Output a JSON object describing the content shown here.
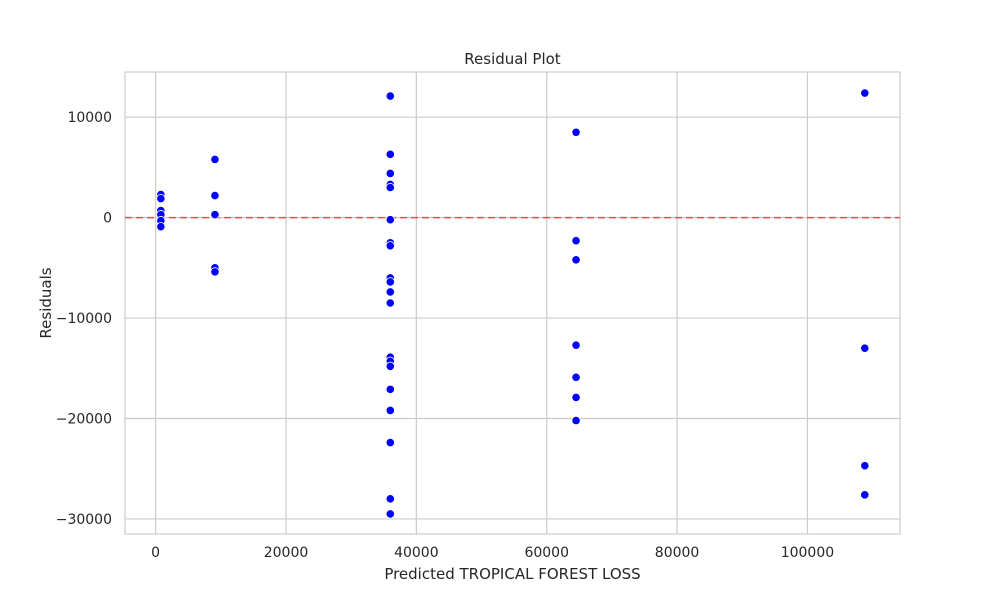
{
  "chart_data": {
    "type": "scatter",
    "title": "Residual Plot",
    "xlabel": "Predicted TROPICAL FOREST LOSS",
    "ylabel": "Residuals",
    "xlim": [
      -4700,
      114200
    ],
    "ylim": [
      -31500,
      14500
    ],
    "xticks": [
      0,
      20000,
      40000,
      60000,
      80000,
      100000
    ],
    "yticks": [
      -30000,
      -20000,
      -10000,
      0,
      10000
    ],
    "xtick_labels": [
      "0",
      "20000",
      "40000",
      "60000",
      "80000",
      "100000"
    ],
    "ytick_labels": [
      "−30000",
      "−20000",
      "−10000",
      "0",
      "10000"
    ],
    "grid": true,
    "reference_line": {
      "y": 0,
      "style": "dashed",
      "color": "#d9534f"
    },
    "point_color": "#0000ff",
    "points": [
      {
        "x": 800,
        "y": 2300
      },
      {
        "x": 800,
        "y": 1900
      },
      {
        "x": 800,
        "y": 700
      },
      {
        "x": 800,
        "y": 300
      },
      {
        "x": 800,
        "y": -300
      },
      {
        "x": 800,
        "y": -900
      },
      {
        "x": 9100,
        "y": 5800
      },
      {
        "x": 9100,
        "y": 2200
      },
      {
        "x": 9100,
        "y": 300
      },
      {
        "x": 9100,
        "y": -5000
      },
      {
        "x": 9100,
        "y": -5400
      },
      {
        "x": 36000,
        "y": 12100
      },
      {
        "x": 36000,
        "y": 6300
      },
      {
        "x": 36000,
        "y": 4400
      },
      {
        "x": 36000,
        "y": 3300
      },
      {
        "x": 36000,
        "y": 3000
      },
      {
        "x": 36000,
        "y": -200
      },
      {
        "x": 36000,
        "y": -2500
      },
      {
        "x": 36000,
        "y": -2800
      },
      {
        "x": 36000,
        "y": -6000
      },
      {
        "x": 36000,
        "y": -6400
      },
      {
        "x": 36000,
        "y": -7400
      },
      {
        "x": 36000,
        "y": -8500
      },
      {
        "x": 36000,
        "y": -13900
      },
      {
        "x": 36000,
        "y": -14300
      },
      {
        "x": 36000,
        "y": -14800
      },
      {
        "x": 36000,
        "y": -17100
      },
      {
        "x": 36000,
        "y": -19200
      },
      {
        "x": 36000,
        "y": -22400
      },
      {
        "x": 36000,
        "y": -28000
      },
      {
        "x": 36000,
        "y": -29500
      },
      {
        "x": 64500,
        "y": 8500
      },
      {
        "x": 64500,
        "y": -2300
      },
      {
        "x": 64500,
        "y": -4200
      },
      {
        "x": 64500,
        "y": -12700
      },
      {
        "x": 64500,
        "y": -15900
      },
      {
        "x": 64500,
        "y": -17900
      },
      {
        "x": 64500,
        "y": -20200
      },
      {
        "x": 108800,
        "y": 12400
      },
      {
        "x": 108800,
        "y": -13000
      },
      {
        "x": 108800,
        "y": -24700
      },
      {
        "x": 108800,
        "y": -27600
      }
    ]
  }
}
